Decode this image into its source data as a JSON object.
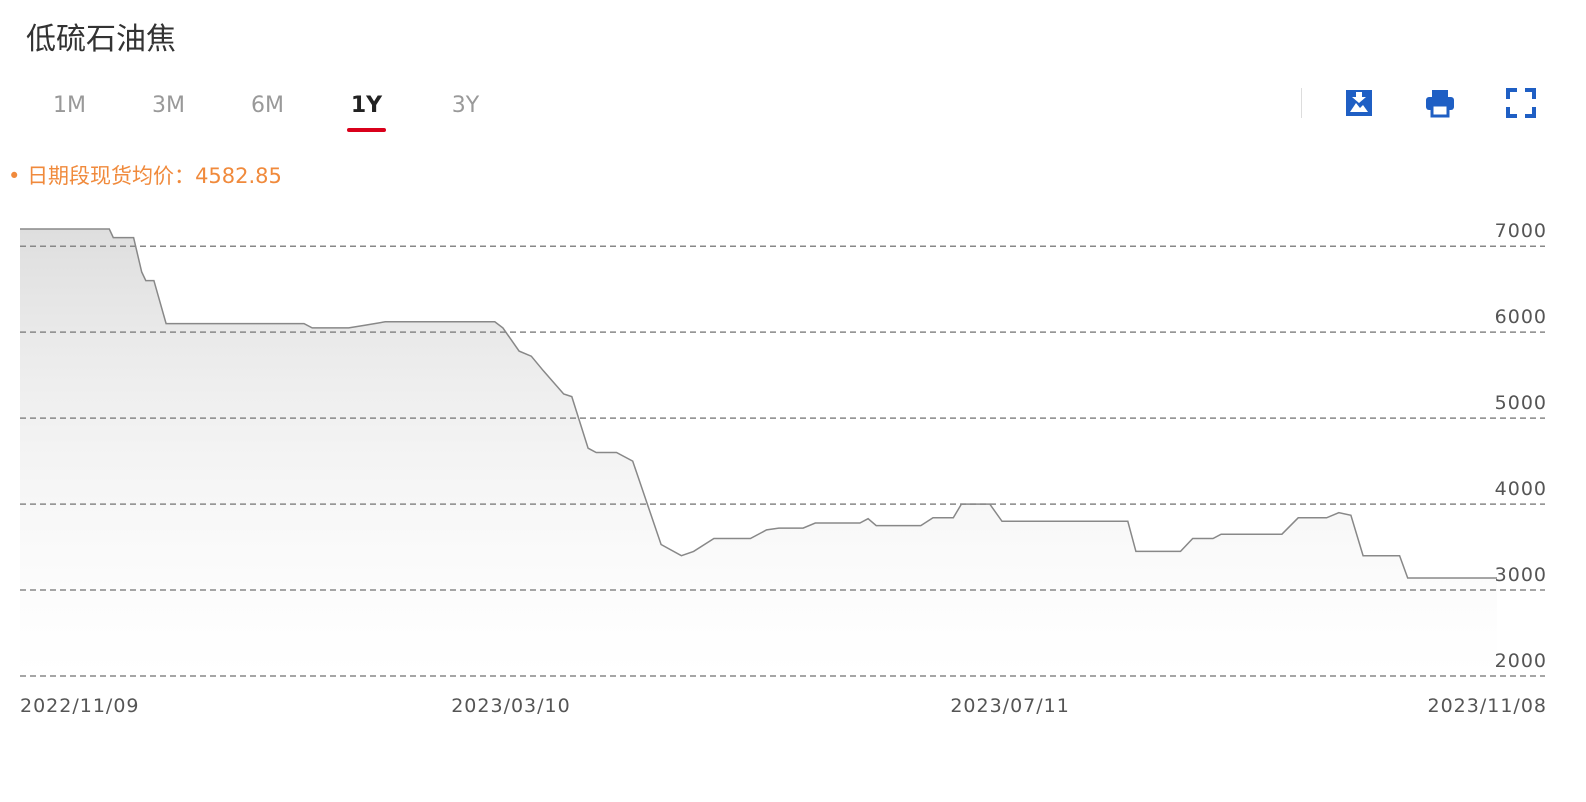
{
  "header": {
    "title": "低硫石油焦"
  },
  "tabs": {
    "items": [
      "1M",
      "3M",
      "6M",
      "1Y",
      "3Y"
    ],
    "active": "1Y"
  },
  "summary": {
    "label": "日期段现货均价：",
    "value": 4582.85
  },
  "chart_data": {
    "type": "line",
    "x": [
      "2022/11/09",
      "2022/12/01",
      "2022/12/02",
      "2022/12/07",
      "2022/12/09",
      "2022/12/10",
      "2022/12/12",
      "2022/12/15",
      "2023/01/18",
      "2023/01/20",
      "2023/01/29",
      "2023/02/02",
      "2023/02/07",
      "2023/03/06",
      "2023/03/08",
      "2023/03/12",
      "2023/03/15",
      "2023/03/18",
      "2023/03/23",
      "2023/03/25",
      "2023/03/29",
      "2023/03/31",
      "2023/04/05",
      "2023/04/09",
      "2023/04/16",
      "2023/04/21",
      "2023/04/24",
      "2023/04/29",
      "2023/05/08",
      "2023/05/12",
      "2023/05/15",
      "2023/05/21",
      "2023/05/24",
      "2023/06/04",
      "2023/06/06",
      "2023/06/08",
      "2023/06/19",
      "2023/06/22",
      "2023/06/27",
      "2023/06/29",
      "2023/07/06",
      "2023/07/09",
      "2023/08/09",
      "2023/08/11",
      "2023/08/22",
      "2023/08/25",
      "2023/08/30",
      "2023/09/01",
      "2023/09/16",
      "2023/09/20",
      "2023/09/27",
      "2023/09/30",
      "2023/10/03",
      "2023/10/06",
      "2023/10/15",
      "2023/10/17",
      "2023/11/08"
    ],
    "series": [
      {
        "color": "#888888",
        "values": [
          7200,
          7200,
          7100,
          7100,
          6700,
          6600,
          6600,
          6100,
          6100,
          6050,
          6050,
          6080,
          6120,
          6120,
          6050,
          5780,
          5720,
          5550,
          5280,
          5250,
          4650,
          4600,
          4600,
          4500,
          3530,
          3400,
          3450,
          3600,
          3600,
          3700,
          3720,
          3720,
          3780,
          3780,
          3830,
          3750,
          3750,
          3840,
          3840,
          4000,
          4000,
          3800,
          3800,
          3450,
          3450,
          3600,
          3600,
          3650,
          3650,
          3840,
          3840,
          3900,
          3870,
          3400,
          3400,
          3140,
          3140
        ]
      }
    ],
    "xticks": [
      "2022/11/09",
      "2023/03/10",
      "2023/07/11",
      "2023/11/08"
    ],
    "ylim": [
      2000,
      7200
    ],
    "yticks": [
      2000,
      3000,
      4000,
      5000,
      6000,
      7000
    ],
    "grid": true
  }
}
